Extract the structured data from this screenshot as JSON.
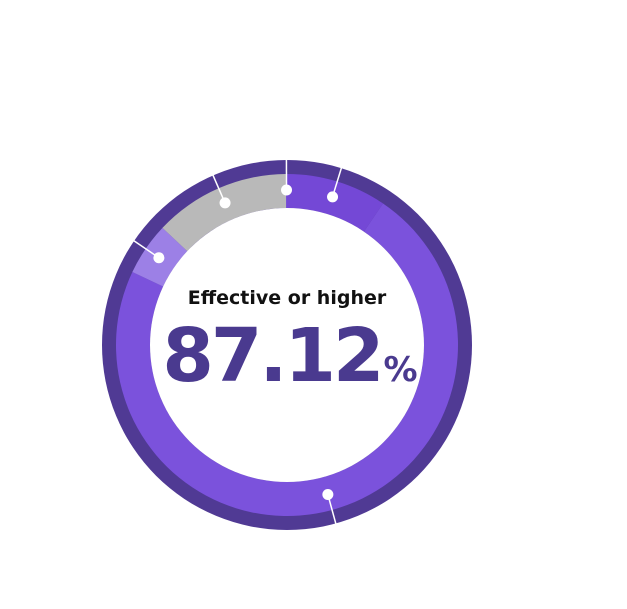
{
  "chart_data": {
    "type": "pie",
    "style": "donut",
    "center": {
      "label": "Effective or higher",
      "value": "87.12",
      "unit": "%"
    },
    "slices": [
      {
        "value": 9.5,
        "color": "#7448d6"
      },
      {
        "value": 72.6,
        "color": "#7b52dc"
      },
      {
        "value": 5.0,
        "color": "#9c80e6"
      },
      {
        "value": 12.9,
        "color": "#b9b9b9"
      },
      {
        "value": 0.1,
        "color": "#7b52dc"
      }
    ],
    "outer_ring_color": "#503a94"
  }
}
